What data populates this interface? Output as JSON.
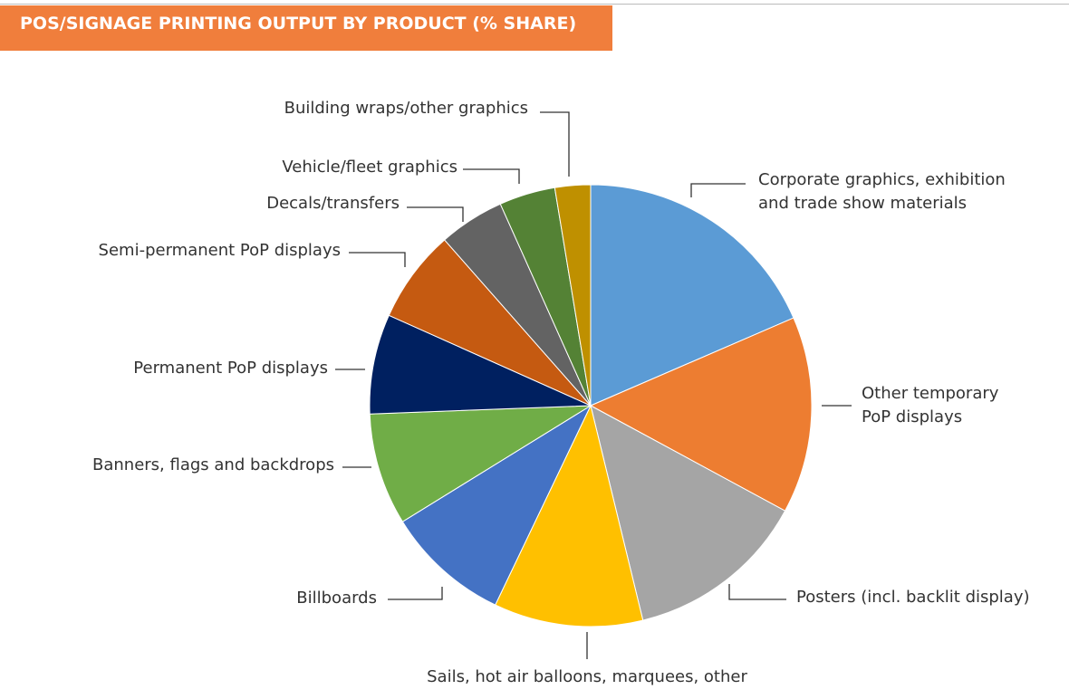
{
  "chart_data": {
    "type": "pie",
    "title": "POS/SIGNAGE PRINTING OUTPUT BY PRODUCT (% SHARE)",
    "categories": [
      "Corporate graphics, exhibition and trade show materials",
      "Other temporary PoP displays",
      "Posters (incl. backlit display)",
      "Sails, hot air balloons, marquees, other",
      "Billboards",
      "Banners, flags and backdrops",
      "Permanent PoP displays",
      "Semi-permanent PoP displays",
      "Decals/transfers",
      "Vehicle/fleet graphics",
      "Building wraps/other graphics"
    ],
    "values": [
      18.5,
      14.4,
      13.3,
      10.9,
      9.1,
      8.2,
      7.3,
      6.8,
      4.8,
      4.1,
      2.6
    ],
    "colors": [
      "#5b9bd5",
      "#ed7d31",
      "#a5a5a5",
      "#ffc000",
      "#4472c4",
      "#70ad47",
      "#002060",
      "#c55a11",
      "#636363",
      "#548235",
      "#bf9000"
    ]
  }
}
